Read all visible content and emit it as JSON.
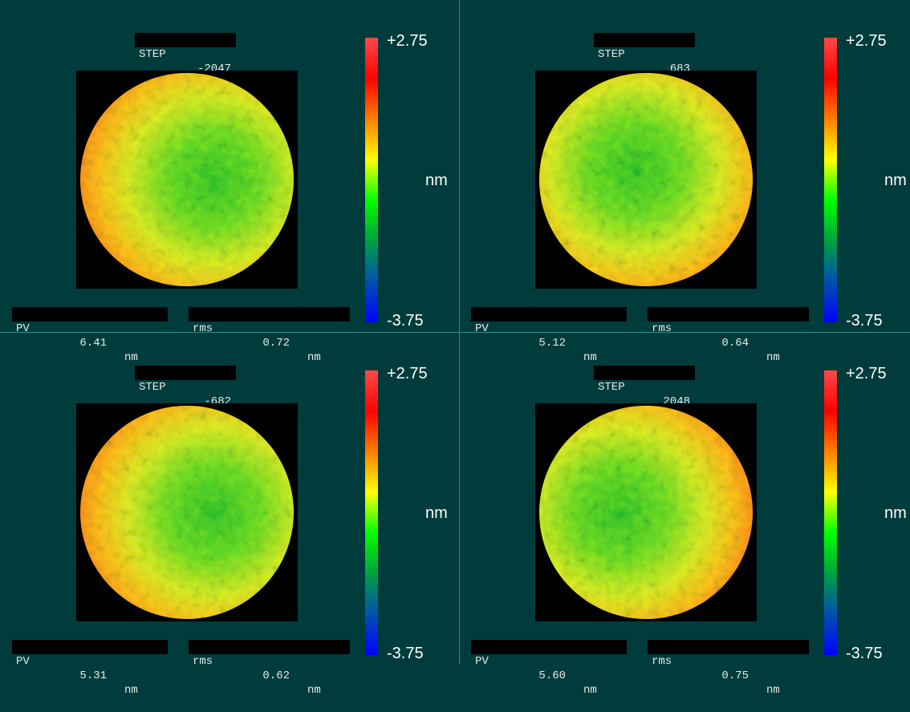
{
  "colorbar": {
    "max_label": "+2.75",
    "min_label": "-3.75",
    "unit": "nm",
    "max": 2.75,
    "min": -3.75,
    "stops": [
      "#ff4a4a",
      "#ff0000",
      "#ff7f00",
      "#ffff00",
      "#00ff00",
      "#00a040",
      "#0050b0",
      "#0000ff"
    ]
  },
  "step_key": "STEP",
  "pv_key": "PV",
  "rms_key": "rms",
  "panels": [
    {
      "step": "-2047",
      "pv": "6.41",
      "pv_unit": "nm",
      "rms": "0.72",
      "rms_unit": "nm",
      "tilt_hot": "left",
      "warmth": 0.62
    },
    {
      "step": "683",
      "pv": "5.12",
      "pv_unit": "nm",
      "rms": "0.64",
      "rms_unit": "nm",
      "tilt_hot": "bottom-right",
      "warmth": 0.48
    },
    {
      "step": "-682",
      "pv": "5.31",
      "pv_unit": "nm",
      "rms": "0.62",
      "rms_unit": "nm",
      "tilt_hot": "left",
      "warmth": 0.45
    },
    {
      "step": "2048",
      "pv": "5.60",
      "pv_unit": "nm",
      "rms": "0.75",
      "rms_unit": "nm",
      "tilt_hot": "right",
      "warmth": 0.6
    }
  ]
}
